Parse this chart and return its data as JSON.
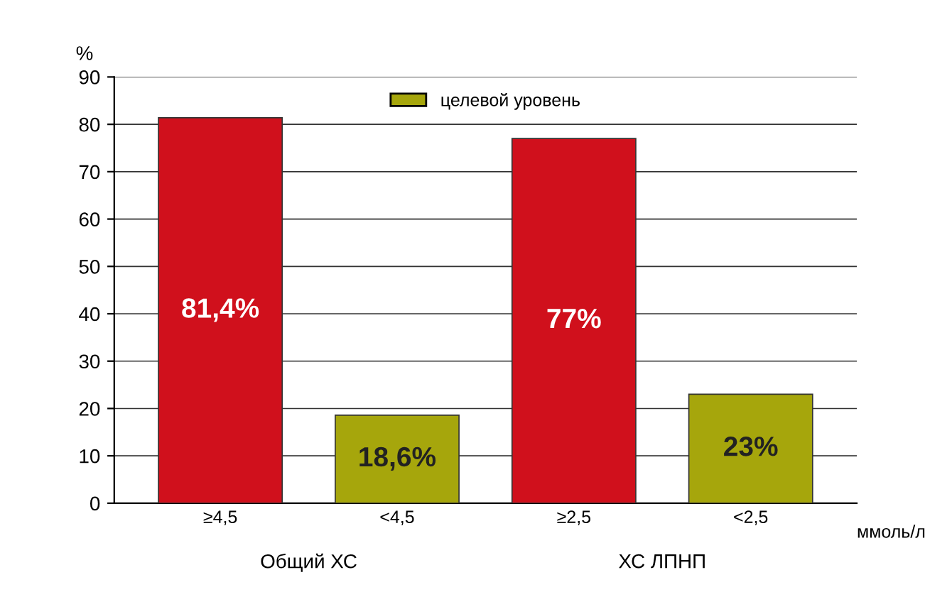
{
  "chart_data": {
    "type": "bar",
    "ylabel": "%",
    "xlabel": "ммоль/л",
    "categories": [
      "≥4,5",
      "<4,5",
      "≥2,5",
      "<2,5"
    ],
    "series": [
      {
        "color": "#d0101c",
        "values": [
          81.4,
          null,
          77,
          null
        ],
        "value_labels": [
          "81,4%",
          null,
          "77%",
          null
        ]
      },
      {
        "name": "целевой уровень",
        "color": "#a6a60c",
        "values": [
          null,
          18.6,
          null,
          23
        ],
        "value_labels": [
          null,
          "18,6%",
          null,
          "23%"
        ]
      }
    ],
    "annotations": [
      "Общий ХС",
      "ХС ЛПНП"
    ],
    "ylim": [
      0,
      90
    ],
    "yticks": [
      0,
      10,
      20,
      30,
      40,
      50,
      60,
      70,
      80,
      90
    ],
    "grid": "y",
    "legend": "top"
  }
}
